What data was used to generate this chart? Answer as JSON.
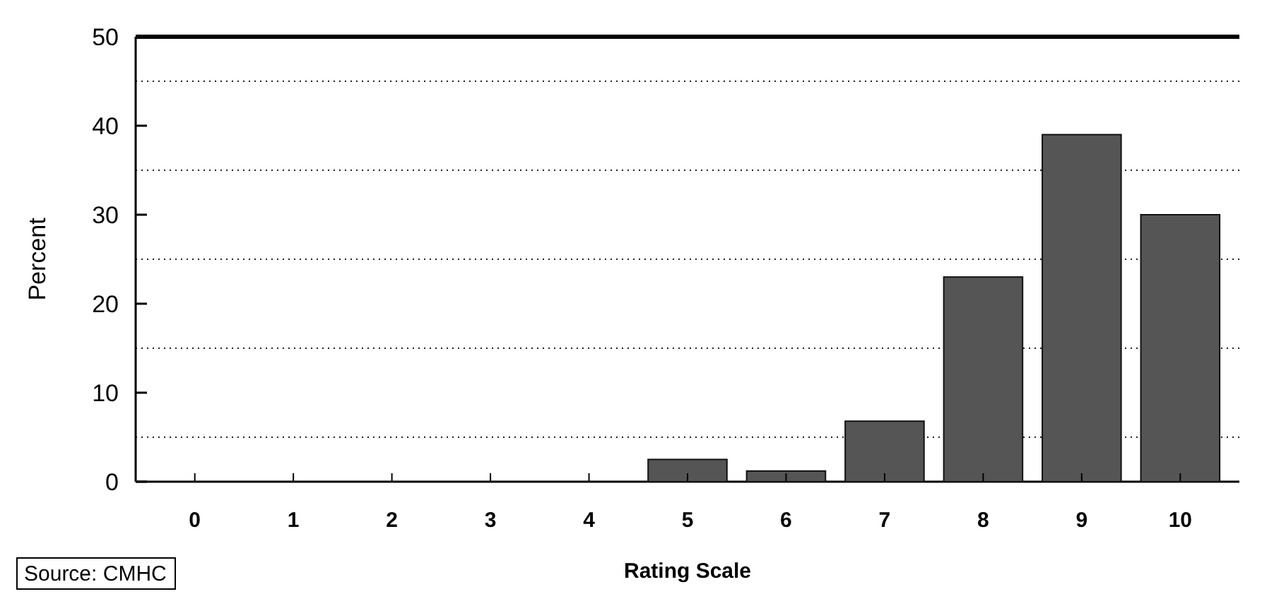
{
  "chart_data": {
    "type": "bar",
    "xlabel": "Rating Scale",
    "ylabel": "Percent",
    "categories": [
      "0",
      "1",
      "2",
      "3",
      "4",
      "5",
      "6",
      "7",
      "8",
      "9",
      "10"
    ],
    "values": [
      0,
      0,
      0,
      0,
      0,
      2.5,
      1.2,
      6.8,
      23,
      39,
      30
    ],
    "color": "#555555",
    "ylim": [
      0,
      50
    ],
    "yticks": [
      0,
      {
        "value": 5,
        "label": null
      },
      10,
      {
        "value": 15,
        "label": null
      },
      20,
      {
        "value": 25,
        "label": null
      },
      30,
      {
        "value": 35,
        "label": null
      },
      40,
      {
        "value": 45,
        "label": null
      },
      50
    ],
    "grid": "y",
    "annotations": [
      "Source: CMHC"
    ]
  }
}
